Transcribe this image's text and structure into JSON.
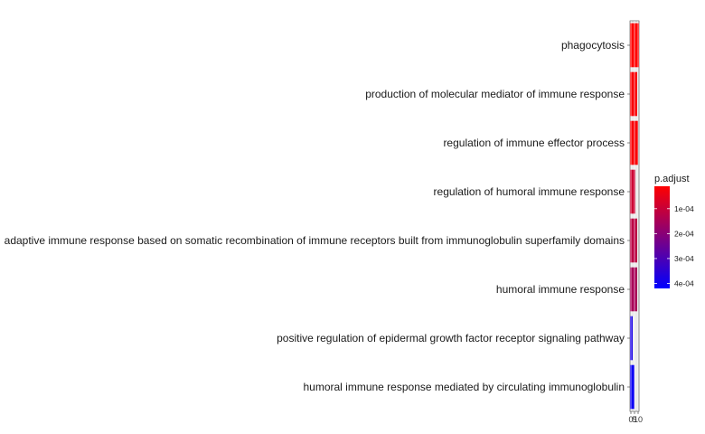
{
  "chart_data": {
    "type": "bar",
    "orientation": "horizontal",
    "categories": [
      "phagocytosis",
      "production of molecular mediator of immune response",
      "regulation of immune effector process",
      "regulation of humoral immune response",
      "adaptive immune response based on somatic recombination of immune receptors built from immunoglobulin superfamily domains",
      "humoral immune response",
      "positive regulation of epidermal growth factor receptor signaling pathway",
      "humoral immune response mediated by circulating immunoglobulin"
    ],
    "values": [
      10,
      8,
      9,
      6,
      8,
      8,
      3,
      5
    ],
    "p_adjust": [
      1e-05,
      2e-05,
      2e-05,
      9e-05,
      0.00012,
      0.00015,
      0.00038,
      0.0004
    ],
    "xlim": [
      0,
      10
    ],
    "x_tick_labels": [
      "0",
      "5",
      "10"
    ],
    "legend": {
      "title": "p.adjust",
      "position": "right",
      "ticks": [
        "1e-04",
        "2e-04",
        "3e-04",
        "4e-04"
      ],
      "tick_values": [
        0.0001,
        0.0002,
        0.0003,
        0.0004
      ],
      "range": [
        1e-05,
        0.00042
      ],
      "low_color": "#FF0000",
      "high_color": "#0000FF"
    },
    "panel_background": "#EBEBEB",
    "grid": true,
    "title": "",
    "xlabel": "",
    "ylabel": ""
  }
}
